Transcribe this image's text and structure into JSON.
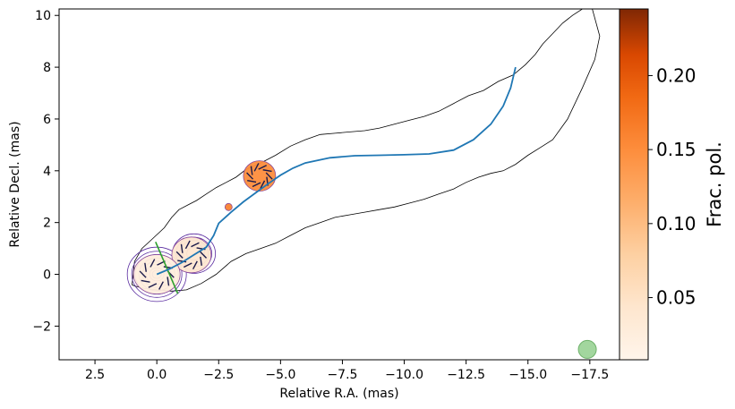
{
  "chart_data": {
    "type": "contour",
    "xlabel": "Relative R.A. (mas)",
    "ylabel": "Relative Decl. (mas)",
    "xlim": [
      3.95,
      -18.7
    ],
    "ylim": [
      -3.3,
      10.25
    ],
    "x_ticks": [
      2.5,
      0.0,
      -2.5,
      -5.0,
      -7.5,
      -10.0,
      -12.5,
      -15.0,
      -17.5
    ],
    "x_tick_labels": [
      "2.5",
      "0.0",
      "−2.5",
      "−5.0",
      "−7.5",
      "−10.0",
      "−12.5",
      "−15.0",
      "−17.5"
    ],
    "y_ticks": [
      -2,
      0,
      2,
      4,
      6,
      8,
      10
    ],
    "y_tick_labels": [
      "−2",
      "0",
      "2",
      "4",
      "6",
      "8",
      "10"
    ],
    "colorbar": {
      "label": "Frac. pol.",
      "range": [
        0.008,
        0.245
      ],
      "ticks": [
        0.05,
        0.1,
        0.15,
        0.2
      ],
      "tick_labels": [
        "0.05",
        "0.10",
        "0.15",
        "0.20"
      ],
      "colormap": "Oranges"
    },
    "jet_ridge_line": {
      "color": "#1f77b4",
      "x": [
        0.0,
        -0.5,
        -1.0,
        -1.5,
        -2.0,
        -2.3,
        -2.5,
        -3.0,
        -3.5,
        -4.0,
        -4.5,
        -5.0,
        -5.5,
        -6.0,
        -7.0,
        -8.0,
        -9.0,
        -10.0,
        -11.0,
        -12.0,
        -12.8,
        -13.5,
        -14.0,
        -14.3,
        -14.5
      ],
      "y": [
        0.0,
        0.2,
        0.45,
        0.75,
        1.05,
        1.5,
        1.97,
        2.4,
        2.8,
        3.15,
        3.5,
        3.83,
        4.1,
        4.3,
        4.5,
        4.58,
        4.6,
        4.62,
        4.65,
        4.8,
        5.2,
        5.8,
        6.5,
        7.2,
        8.0
      ]
    },
    "outer_contour": {
      "color": "#000000",
      "x": [
        1.0,
        0.9,
        0.6,
        0.2,
        -0.3,
        -0.6,
        -0.9,
        -1.3,
        -1.6,
        -2.0,
        -2.4,
        -2.8,
        -3.2,
        -3.6,
        -4.2,
        -4.8,
        -5.4,
        -6.0,
        -6.6,
        -7.2,
        -7.8,
        -8.4,
        -9.0,
        -9.6,
        -10.2,
        -10.8,
        -11.4,
        -12.0,
        -12.6,
        -13.2,
        -13.8,
        -14.4,
        -14.9,
        -15.3,
        -15.6,
        -16.0,
        -16.4,
        -16.8,
        -17.2,
        -17.6,
        -17.9,
        -17.7,
        -17.2,
        -16.6,
        -16.0,
        -15.5,
        -15.0,
        -14.5,
        -14.0,
        -13.5,
        -13.0,
        -12.5,
        -12.0,
        -11.4,
        -10.8,
        -10.2,
        -9.6,
        -9.0,
        -8.4,
        -7.8,
        -7.2,
        -6.6,
        -6.0,
        -5.4,
        -4.8,
        -4.2,
        -3.6,
        -3.0,
        -2.4,
        -1.8,
        -1.2,
        -0.6,
        0.0,
        0.5,
        0.9,
        1.0
      ],
      "y": [
        -0.4,
        0.5,
        1.0,
        1.35,
        1.8,
        2.2,
        2.5,
        2.7,
        2.85,
        3.1,
        3.35,
        3.55,
        3.75,
        4.05,
        4.3,
        4.6,
        4.95,
        5.2,
        5.4,
        5.45,
        5.5,
        5.55,
        5.65,
        5.8,
        5.95,
        6.1,
        6.3,
        6.6,
        6.9,
        7.1,
        7.45,
        7.7,
        8.1,
        8.5,
        8.9,
        9.3,
        9.7,
        10.0,
        10.25,
        10.25,
        9.2,
        8.3,
        7.2,
        6.0,
        5.2,
        4.9,
        4.6,
        4.25,
        4.0,
        3.9,
        3.75,
        3.55,
        3.3,
        3.1,
        2.9,
        2.75,
        2.6,
        2.5,
        2.4,
        2.3,
        2.2,
        2.0,
        1.8,
        1.5,
        1.2,
        1.0,
        0.8,
        0.5,
        0.0,
        -0.35,
        -0.6,
        -0.65,
        -0.6,
        -0.55,
        -0.45,
        -0.4
      ]
    },
    "polarization_components": [
      {
        "x": -4.15,
        "y": 3.8,
        "fraction": 0.15
      },
      {
        "x": -1.4,
        "y": 0.75,
        "fraction": 0.04
      },
      {
        "x": 0.0,
        "y": 0.0,
        "fraction": 0.025
      },
      {
        "x": -2.9,
        "y": 2.6,
        "fraction": 0.16
      }
    ],
    "intensity_contour_centers": [
      {
        "x": 0.0,
        "y": 0.0
      },
      {
        "x": -1.5,
        "y": 0.8
      }
    ],
    "beam": {
      "x": -17.4,
      "y": -2.9,
      "color": "#98d294"
    },
    "grid": false,
    "legend": "none"
  }
}
